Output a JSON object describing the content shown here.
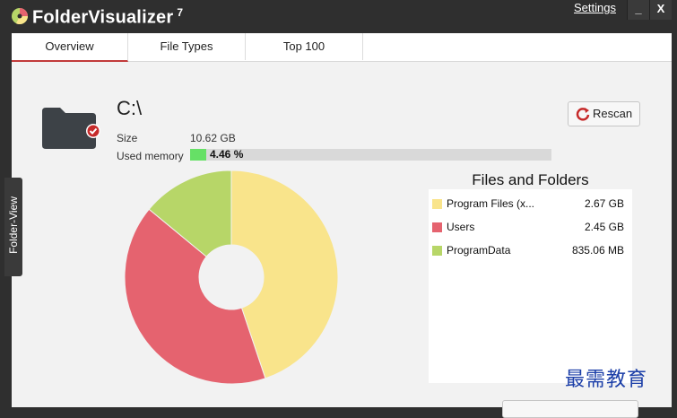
{
  "app": {
    "title": "FolderVisualizer",
    "version": "7",
    "settings_label": "Settings",
    "minimize_label": "_",
    "close_label": "X"
  },
  "tabs": [
    {
      "label": "Overview",
      "selected": true
    },
    {
      "label": "File Types",
      "selected": false
    },
    {
      "label": "Top 100",
      "selected": false
    }
  ],
  "side_tab": {
    "label": "Folder-View"
  },
  "drive": {
    "name": "C:\\",
    "size_label": "Size",
    "size_value": "10.62 GB",
    "memory_label": "Used memory",
    "memory_value": "4.46 %",
    "memory_percent": 4.46
  },
  "rescan_label": "Rescan",
  "chart_data": {
    "type": "pie",
    "title": "Files and Folders",
    "donut": true,
    "slices": [
      {
        "name": "Program Files (x...",
        "value": 2.67,
        "value_label": "2.67 GB",
        "color": "#f9e48b"
      },
      {
        "name": "Users",
        "value": 2.45,
        "value_label": "2.45 GB",
        "color": "#e5636f"
      },
      {
        "name": "ProgramData",
        "value": 0.835,
        "value_label": "835.06 MB",
        "color": "#b7d668"
      }
    ]
  },
  "watermark": "最需教育",
  "colors": {
    "accent": "#c23b3b",
    "titlebar": "#2f2f2f",
    "panel": "#f2f2f2"
  }
}
